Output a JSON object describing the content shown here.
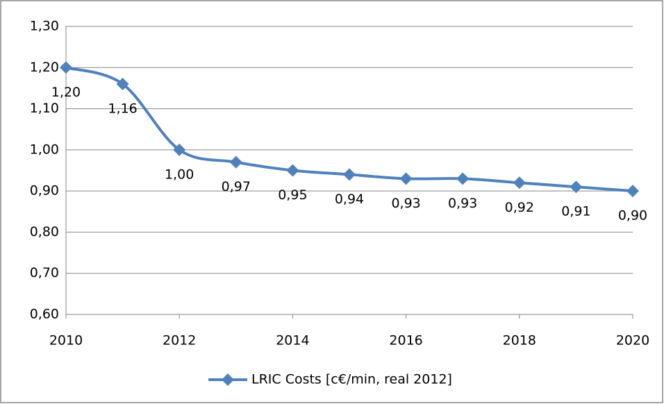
{
  "chart_data": {
    "type": "line",
    "x": [
      2010,
      2011,
      2012,
      2013,
      2014,
      2015,
      2016,
      2017,
      2018,
      2019,
      2020
    ],
    "series": [
      {
        "name": "LRIC Costs [c€/min, real 2012]",
        "color": "#4f81bd",
        "values": [
          1.2,
          1.16,
          1.0,
          0.97,
          0.95,
          0.94,
          0.93,
          0.93,
          0.92,
          0.91,
          0.9
        ],
        "value_labels": [
          "1,20",
          "1,16",
          "1,00",
          "0,97",
          "0,95",
          "0,94",
          "0,93",
          "0,93",
          "0,92",
          "0,91",
          "0,90"
        ]
      }
    ],
    "xlim": [
      2010,
      2020
    ],
    "xticks": [
      2010,
      2012,
      2014,
      2016,
      2018,
      2020
    ],
    "ylim": [
      0.6,
      1.3
    ],
    "yticks": [
      {
        "value": 0.6,
        "label": "0,60"
      },
      {
        "value": 0.7,
        "label": "0,70"
      },
      {
        "value": 0.8,
        "label": "0,80"
      },
      {
        "value": 0.9,
        "label": "0,90"
      },
      {
        "value": 1.0,
        "label": "1,00"
      },
      {
        "value": 1.1,
        "label": "1,10"
      },
      {
        "value": 1.2,
        "label": "1,20"
      },
      {
        "value": 1.3,
        "label": "1,30"
      }
    ],
    "grid": true,
    "smooth": true,
    "legend": "bottom"
  }
}
